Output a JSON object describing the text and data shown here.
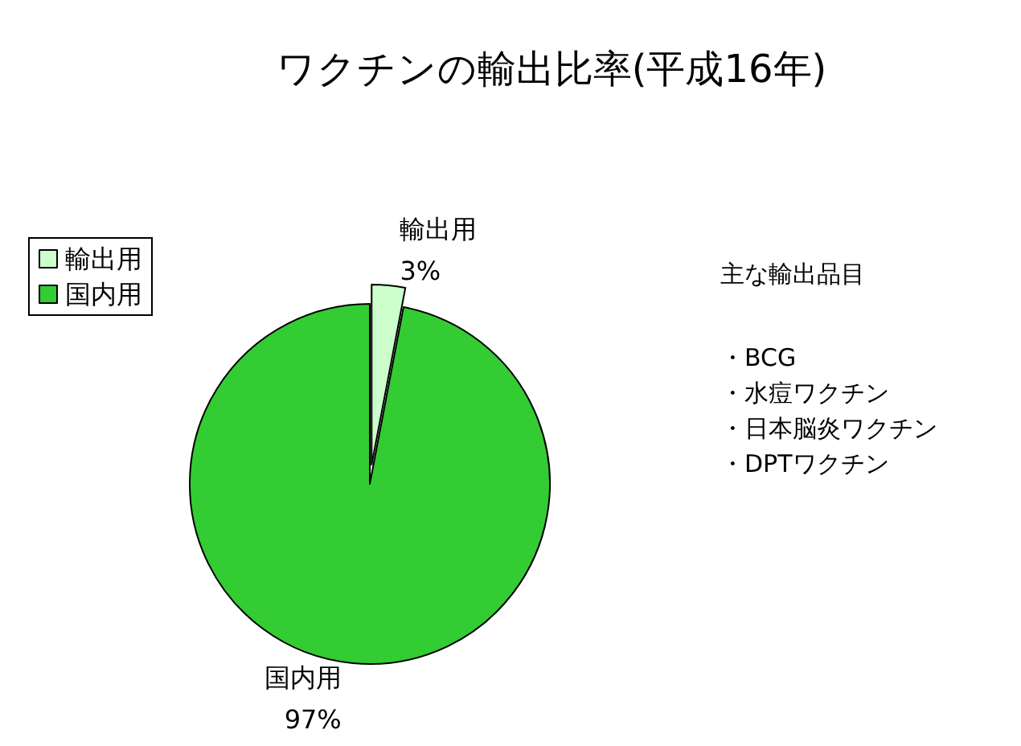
{
  "chart_data": {
    "type": "pie",
    "title": "ワクチンの輸出比率(平成16年)",
    "categories": [
      "輸出用",
      "国内用"
    ],
    "values": [
      3,
      97
    ],
    "colors": [
      "#ccffcc",
      "#33cc33"
    ],
    "value_labels": [
      "3%",
      "97%"
    ],
    "legend": "top left",
    "annotations": [
      "主な輸出品目",
      "・BCG",
      "・水痘ワクチン",
      "・日本脳炎ワクチン",
      "・DPTワクチン"
    ]
  }
}
